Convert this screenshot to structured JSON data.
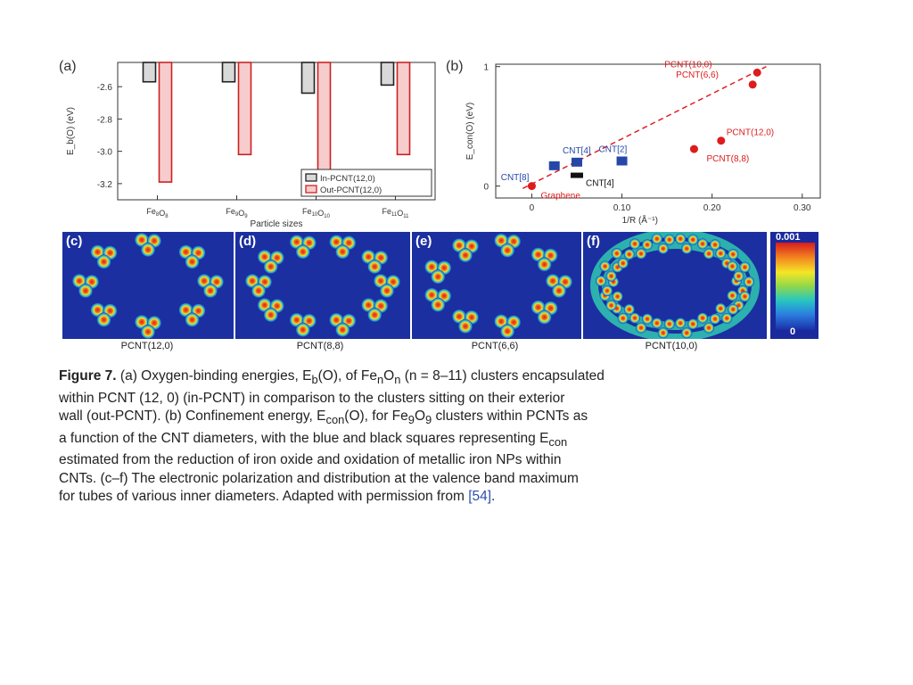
{
  "chart_data": [
    {
      "panel": "(a)",
      "type": "bar",
      "ylabel": "E_b(O) (eV)",
      "xlabel": "Particle sizes",
      "categories": [
        "Fe8O8",
        "Fe9O9",
        "Fe10O10",
        "Fe11O11"
      ],
      "category_labels": [
        {
          "base": "Fe",
          "sub1": "8",
          "mid": "O",
          "sub2": "8"
        },
        {
          "base": "Fe",
          "sub1": "9",
          "mid": "O",
          "sub2": "9"
        },
        {
          "base": "Fe",
          "sub1": "10",
          "mid": "O",
          "sub2": "10"
        },
        {
          "base": "Fe",
          "sub1": "11",
          "mid": "O",
          "sub2": "11"
        }
      ],
      "yticks": [
        "-2.6",
        "-2.8",
        "-3.0",
        "-3.2"
      ],
      "ytick_values": [
        -2.6,
        -2.8,
        -3.0,
        -3.2
      ],
      "ylim": [
        -3.3,
        -2.45
      ],
      "series": [
        {
          "name": "In-PCNT(12,0)",
          "color": "#d9d9d9",
          "stroke": "#222222",
          "values": [
            -2.57,
            -2.57,
            -2.64,
            -2.59
          ]
        },
        {
          "name": "Out-PCNT(12,0)",
          "color": "#f7cccc",
          "stroke": "#cc2222",
          "values": [
            -3.19,
            -3.02,
            -3.2,
            -3.02
          ]
        }
      ],
      "legend_position": "bottom-right"
    },
    {
      "panel": "(b)",
      "type": "scatter",
      "ylabel": "E_con(O) (eV)",
      "xlabel": "1/R (Å⁻¹)",
      "xticks": [
        "0",
        "0.10",
        "0.20",
        "0.30"
      ],
      "xtick_values": [
        0,
        0.1,
        0.2,
        0.3
      ],
      "yticks": [
        "0",
        "1"
      ],
      "ytick_values": [
        0,
        1
      ],
      "xlim": [
        -0.04,
        0.32
      ],
      "ylim": [
        -0.1,
        1.02
      ],
      "red_points": [
        {
          "x": 0.0,
          "y": 0.0,
          "label": "Graphene"
        },
        {
          "x": 0.18,
          "y": 0.31,
          "label": "PCNT(8,8)"
        },
        {
          "x": 0.21,
          "y": 0.38,
          "label": "PCNT(12,0)"
        },
        {
          "x": 0.245,
          "y": 0.85,
          "label": "PCNT(6,6)"
        },
        {
          "x": 0.25,
          "y": 0.95,
          "label": "PCNT(10,0)"
        }
      ],
      "fit_line": [
        [
          -0.01,
          -0.02
        ],
        [
          0.26,
          1.0
        ]
      ],
      "blue_squares": [
        {
          "x": 0.025,
          "y": 0.17,
          "label": "CNT[8]"
        },
        {
          "x": 0.05,
          "y": 0.2,
          "label": "CNT[4]"
        },
        {
          "x": 0.1,
          "y": 0.21,
          "label": "CNT[2]"
        }
      ],
      "black_squares": [
        {
          "x": 0.05,
          "y": 0.09,
          "label": "CNT[4]"
        }
      ]
    }
  ],
  "labels": {
    "panel_a": "(a)",
    "panel_b": "(b)",
    "panel_c": "(c)",
    "panel_d": "(d)",
    "panel_e": "(e)",
    "panel_f": "(f)"
  },
  "images": [
    {
      "caption": "PCNT(12,0)"
    },
    {
      "caption": "PCNT(8,8)"
    },
    {
      "caption": "PCNT(6,6)"
    },
    {
      "caption": "PCNT(10,0)"
    }
  ],
  "colorbar": {
    "max": "0.001",
    "min": "0"
  },
  "caption": {
    "figure_label": "Figure 7.",
    "line1": " (a) Oxygen-binding energies, E",
    "line1_sub": "b",
    "line1b": "(O), of Fe",
    "line1_sub2": "n",
    "line1c": "O",
    "line1_sub3": "n",
    "line1d": " (n = 8–11) clusters encapsulated",
    "line2": "within PCNT (12, 0) (in-PCNT) in comparison to the clusters sitting on their exterior",
    "line3": "wall (out-PCNT). (b) Confinement energy, E",
    "line3_sub": "con",
    "line3b": "(O), for Fe",
    "line3_sub2": "9",
    "line3c": "O",
    "line3_sub3": "9",
    "line3d": " clusters within PCNTs as",
    "line4": "a function of the CNT diameters, with the blue and black squares representing E",
    "line4_sub": "con",
    "line5": "estimated from the reduction of iron oxide and oxidation of metallic iron NPs within",
    "line6": "CNTs. (c–f) The electronic polarization and distribution at the valence band maximum",
    "line7": "for tubes of various inner diameters. Adapted with permission from ",
    "ref": "[54]",
    "line7_end": "."
  }
}
